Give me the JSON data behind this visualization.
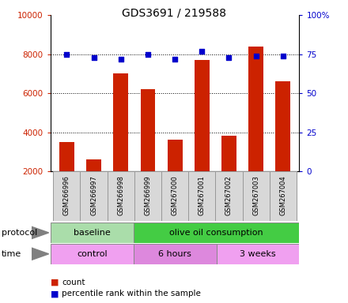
{
  "title": "GDS3691 / 219588",
  "samples": [
    "GSM266996",
    "GSM266997",
    "GSM266998",
    "GSM266999",
    "GSM267000",
    "GSM267001",
    "GSM267002",
    "GSM267003",
    "GSM267004"
  ],
  "counts": [
    3500,
    2600,
    7000,
    6200,
    3600,
    7700,
    3800,
    8400,
    6600
  ],
  "percentile_ranks": [
    75,
    73,
    72,
    75,
    72,
    77,
    73,
    74,
    74
  ],
  "protocol_groups": [
    {
      "label": "baseline",
      "start": 0,
      "end": 3,
      "color": "#aaddaa"
    },
    {
      "label": "olive oil consumption",
      "start": 3,
      "end": 9,
      "color": "#44cc44"
    }
  ],
  "time_groups": [
    {
      "label": "control",
      "start": 0,
      "end": 3,
      "color": "#f0a0f0"
    },
    {
      "label": "6 hours",
      "start": 3,
      "end": 6,
      "color": "#dd88dd"
    },
    {
      "label": "3 weeks",
      "start": 6,
      "end": 9,
      "color": "#f0a0f0"
    }
  ],
  "bar_color": "#cc2200",
  "dot_color": "#0000cc",
  "ylim_left": [
    2000,
    10000
  ],
  "ylim_right": [
    0,
    100
  ],
  "yticks_left": [
    2000,
    4000,
    6000,
    8000,
    10000
  ],
  "yticks_right": [
    0,
    25,
    50,
    75,
    100
  ],
  "yticklabels_right": [
    "0",
    "25",
    "50",
    "75",
    "100%"
  ],
  "grid_values": [
    4000,
    6000,
    8000
  ],
  "left_axis_color": "#cc2200",
  "right_axis_color": "#0000cc",
  "sample_cell_color": "#d8d8d8",
  "bg_color": "#ffffff"
}
